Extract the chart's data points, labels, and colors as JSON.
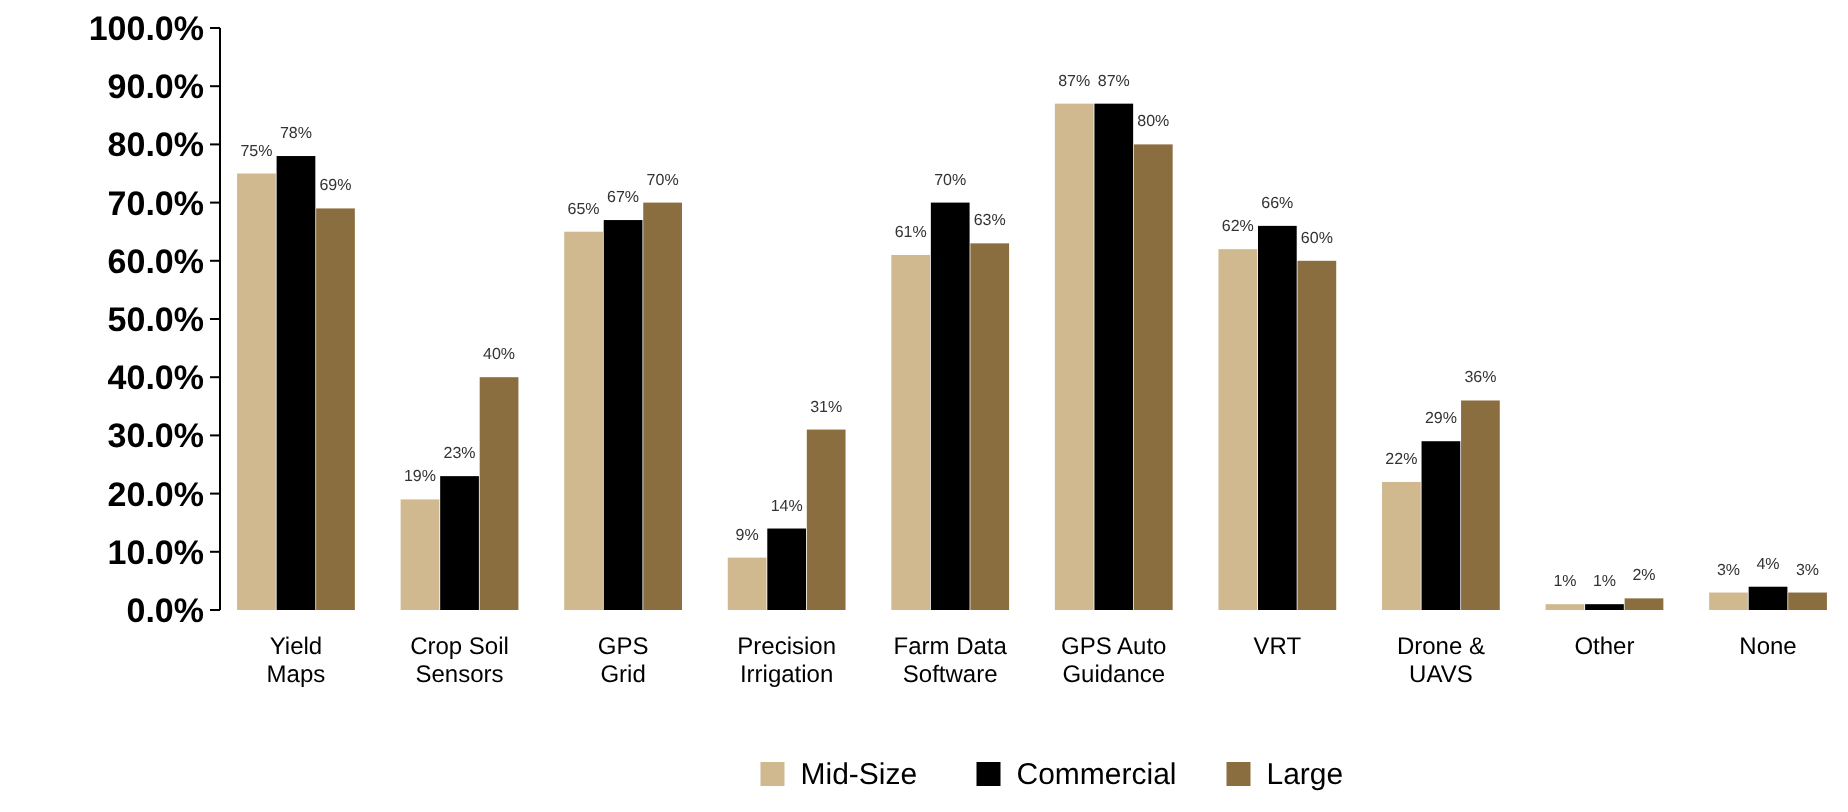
{
  "chart_data": {
    "type": "bar",
    "categories": [
      "Yield\nMaps",
      "Crop Soil\nSensors",
      "GPS\nGrid",
      "Precision\nIrrigation",
      "Farm Data\nSoftware",
      "GPS Auto\nGuidance",
      "VRT",
      "Drone &\nUAVS",
      "Other",
      "None"
    ],
    "series": [
      {
        "name": "Mid-Size",
        "color": "#d0b98f",
        "values": [
          75,
          19,
          65,
          9,
          61,
          87,
          62,
          22,
          1,
          3
        ],
        "value_labels": [
          "75%",
          "19%",
          "65%",
          "9%",
          "61%",
          "87%",
          "62%",
          "22%",
          "1%",
          "3%"
        ]
      },
      {
        "name": "Commercial",
        "color": "#000000",
        "values": [
          78,
          23,
          67,
          14,
          70,
          87,
          66,
          29,
          1,
          4
        ],
        "value_labels": [
          "78%",
          "23%",
          "67%",
          "14%",
          "70%",
          "87%",
          "66%",
          "29%",
          "1%",
          "4%"
        ]
      },
      {
        "name": "Large",
        "color": "#8b6e3f",
        "values": [
          69,
          40,
          70,
          31,
          63,
          80,
          60,
          36,
          2,
          3
        ],
        "value_labels": [
          "69%",
          "40%",
          "70%",
          "31%",
          "63%",
          "80%",
          "60%",
          "36%",
          "2%",
          "3%"
        ]
      }
    ],
    "ylim": [
      0,
      100
    ],
    "yticks": [
      {
        "value": 0,
        "label": "0.0%"
      },
      {
        "value": 10,
        "label": "10.0%"
      },
      {
        "value": 20,
        "label": "20.0%"
      },
      {
        "value": 30,
        "label": "30.0%"
      },
      {
        "value": 40,
        "label": "40.0%"
      },
      {
        "value": 50,
        "label": "50.0%"
      },
      {
        "value": 60,
        "label": "60.0%"
      },
      {
        "value": 70,
        "label": "70.0%"
      },
      {
        "value": 80,
        "label": "80.0%"
      },
      {
        "value": 90,
        "label": "90.0%"
      },
      {
        "value": 100,
        "label": "100.0%"
      }
    ],
    "grid": false,
    "legend": "bottom"
  }
}
